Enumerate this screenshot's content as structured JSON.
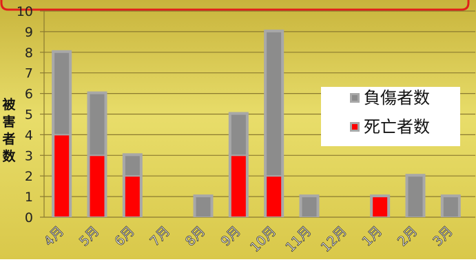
{
  "colors": {
    "background_top": "#c8b43c",
    "background_mid": "#e8dd6a",
    "background_bottom": "#d9c84a",
    "header_border": "#e0201a",
    "gridline": "#8a7a30",
    "injured": "#8c8c8c",
    "dead": "#ff0000",
    "bar_border": "#a8a8a8",
    "legend_bg": "#ffffff"
  },
  "chart_data": {
    "type": "bar",
    "stacked": true,
    "categories": [
      "4月",
      "5月",
      "6月",
      "7月",
      "8月",
      "9月",
      "10月",
      "11月",
      "12月",
      "1月",
      "2月",
      "3月"
    ],
    "series": [
      {
        "name": "死亡者数",
        "color": "#ff0000",
        "values": [
          4,
          3,
          2,
          0,
          0,
          3,
          2,
          0,
          0,
          1,
          0,
          0
        ]
      },
      {
        "name": "負傷者数",
        "color": "#8c8c8c",
        "values": [
          4,
          3,
          1,
          0,
          1,
          2,
          7,
          1,
          0,
          0,
          2,
          1
        ]
      }
    ],
    "ylabel": "被害者数",
    "ylim": [
      0,
      10
    ],
    "yticks": [
      "0",
      "1",
      "2",
      "3",
      "4",
      "5",
      "6",
      "7",
      "8",
      "9",
      "10"
    ],
    "grid": true,
    "legend_position": "right"
  }
}
